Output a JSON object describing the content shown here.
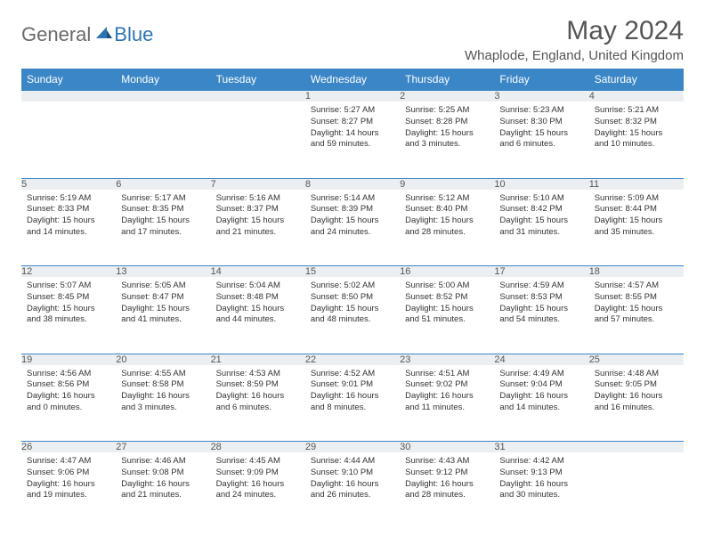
{
  "logo": {
    "general": "General",
    "blue": "Blue"
  },
  "title": "May 2024",
  "location": "Whaplode, England, United Kingdom",
  "headerColor": "#3b86c6",
  "dayNames": [
    "Sunday",
    "Monday",
    "Tuesday",
    "Wednesday",
    "Thursday",
    "Friday",
    "Saturday"
  ],
  "weeks": [
    [
      {
        "n": "",
        "sr": "",
        "ss": "",
        "dl": ""
      },
      {
        "n": "",
        "sr": "",
        "ss": "",
        "dl": ""
      },
      {
        "n": "",
        "sr": "",
        "ss": "",
        "dl": ""
      },
      {
        "n": "1",
        "sr": "5:27 AM",
        "ss": "8:27 PM",
        "dl": "14 hours and 59 minutes."
      },
      {
        "n": "2",
        "sr": "5:25 AM",
        "ss": "8:28 PM",
        "dl": "15 hours and 3 minutes."
      },
      {
        "n": "3",
        "sr": "5:23 AM",
        "ss": "8:30 PM",
        "dl": "15 hours and 6 minutes."
      },
      {
        "n": "4",
        "sr": "5:21 AM",
        "ss": "8:32 PM",
        "dl": "15 hours and 10 minutes."
      }
    ],
    [
      {
        "n": "5",
        "sr": "5:19 AM",
        "ss": "8:33 PM",
        "dl": "15 hours and 14 minutes."
      },
      {
        "n": "6",
        "sr": "5:17 AM",
        "ss": "8:35 PM",
        "dl": "15 hours and 17 minutes."
      },
      {
        "n": "7",
        "sr": "5:16 AM",
        "ss": "8:37 PM",
        "dl": "15 hours and 21 minutes."
      },
      {
        "n": "8",
        "sr": "5:14 AM",
        "ss": "8:39 PM",
        "dl": "15 hours and 24 minutes."
      },
      {
        "n": "9",
        "sr": "5:12 AM",
        "ss": "8:40 PM",
        "dl": "15 hours and 28 minutes."
      },
      {
        "n": "10",
        "sr": "5:10 AM",
        "ss": "8:42 PM",
        "dl": "15 hours and 31 minutes."
      },
      {
        "n": "11",
        "sr": "5:09 AM",
        "ss": "8:44 PM",
        "dl": "15 hours and 35 minutes."
      }
    ],
    [
      {
        "n": "12",
        "sr": "5:07 AM",
        "ss": "8:45 PM",
        "dl": "15 hours and 38 minutes."
      },
      {
        "n": "13",
        "sr": "5:05 AM",
        "ss": "8:47 PM",
        "dl": "15 hours and 41 minutes."
      },
      {
        "n": "14",
        "sr": "5:04 AM",
        "ss": "8:48 PM",
        "dl": "15 hours and 44 minutes."
      },
      {
        "n": "15",
        "sr": "5:02 AM",
        "ss": "8:50 PM",
        "dl": "15 hours and 48 minutes."
      },
      {
        "n": "16",
        "sr": "5:00 AM",
        "ss": "8:52 PM",
        "dl": "15 hours and 51 minutes."
      },
      {
        "n": "17",
        "sr": "4:59 AM",
        "ss": "8:53 PM",
        "dl": "15 hours and 54 minutes."
      },
      {
        "n": "18",
        "sr": "4:57 AM",
        "ss": "8:55 PM",
        "dl": "15 hours and 57 minutes."
      }
    ],
    [
      {
        "n": "19",
        "sr": "4:56 AM",
        "ss": "8:56 PM",
        "dl": "16 hours and 0 minutes."
      },
      {
        "n": "20",
        "sr": "4:55 AM",
        "ss": "8:58 PM",
        "dl": "16 hours and 3 minutes."
      },
      {
        "n": "21",
        "sr": "4:53 AM",
        "ss": "8:59 PM",
        "dl": "16 hours and 6 minutes."
      },
      {
        "n": "22",
        "sr": "4:52 AM",
        "ss": "9:01 PM",
        "dl": "16 hours and 8 minutes."
      },
      {
        "n": "23",
        "sr": "4:51 AM",
        "ss": "9:02 PM",
        "dl": "16 hours and 11 minutes."
      },
      {
        "n": "24",
        "sr": "4:49 AM",
        "ss": "9:04 PM",
        "dl": "16 hours and 14 minutes."
      },
      {
        "n": "25",
        "sr": "4:48 AM",
        "ss": "9:05 PM",
        "dl": "16 hours and 16 minutes."
      }
    ],
    [
      {
        "n": "26",
        "sr": "4:47 AM",
        "ss": "9:06 PM",
        "dl": "16 hours and 19 minutes."
      },
      {
        "n": "27",
        "sr": "4:46 AM",
        "ss": "9:08 PM",
        "dl": "16 hours and 21 minutes."
      },
      {
        "n": "28",
        "sr": "4:45 AM",
        "ss": "9:09 PM",
        "dl": "16 hours and 24 minutes."
      },
      {
        "n": "29",
        "sr": "4:44 AM",
        "ss": "9:10 PM",
        "dl": "16 hours and 26 minutes."
      },
      {
        "n": "30",
        "sr": "4:43 AM",
        "ss": "9:12 PM",
        "dl": "16 hours and 28 minutes."
      },
      {
        "n": "31",
        "sr": "4:42 AM",
        "ss": "9:13 PM",
        "dl": "16 hours and 30 minutes."
      },
      {
        "n": "",
        "sr": "",
        "ss": "",
        "dl": ""
      }
    ]
  ],
  "labels": {
    "sunrise": "Sunrise:",
    "sunset": "Sunset:",
    "daylight": "Daylight:"
  }
}
